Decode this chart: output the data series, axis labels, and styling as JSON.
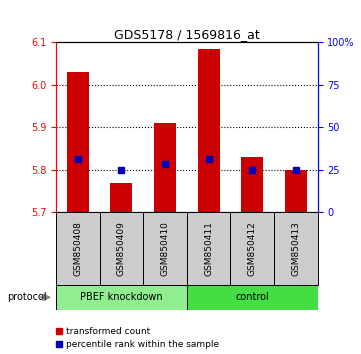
{
  "title": "GDS5178 / 1569816_at",
  "samples": [
    "GSM850408",
    "GSM850409",
    "GSM850410",
    "GSM850411",
    "GSM850412",
    "GSM850413"
  ],
  "red_values": [
    6.03,
    5.77,
    5.91,
    6.085,
    5.83,
    5.8
  ],
  "blue_values": [
    5.825,
    5.8,
    5.815,
    5.825,
    5.8,
    5.8
  ],
  "ylim_left": [
    5.7,
    6.1
  ],
  "ylim_right": [
    0,
    100
  ],
  "y_ticks_left": [
    5.7,
    5.8,
    5.9,
    6.0,
    6.1
  ],
  "y_ticks_right": [
    0,
    25,
    50,
    75,
    100
  ],
  "y_tick_labels_right": [
    "0",
    "25",
    "50",
    "75",
    "100%"
  ],
  "grid_lines": [
    5.8,
    5.9,
    6.0
  ],
  "bar_bottom": 5.7,
  "bar_width": 0.5,
  "red_color": "#CC0000",
  "blue_color": "#0000BB",
  "protocol_label": "protocol",
  "legend_red": "transformed count",
  "legend_blue": "percentile rank within the sample",
  "sample_bg_color": "#CCCCCC",
  "pbef_color": "#90EE90",
  "ctrl_color": "#44DD44"
}
